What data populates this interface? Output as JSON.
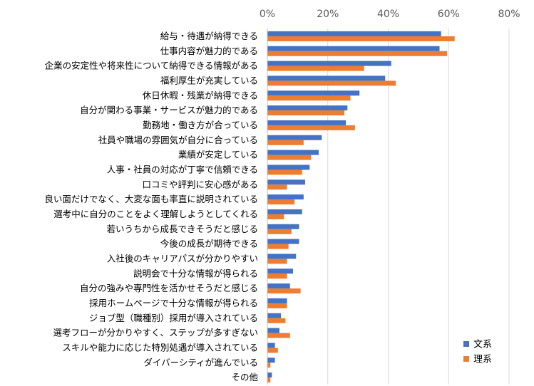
{
  "chart_data": {
    "type": "bar",
    "orientation": "horizontal",
    "title": "",
    "xlabel": "",
    "ylabel": "",
    "xlim": [
      0,
      80
    ],
    "x_ticks": [
      "0%",
      "20%",
      "40%",
      "60%",
      "80%"
    ],
    "x_tick_values": [
      0,
      20,
      40,
      60,
      80
    ],
    "grid": true,
    "legend_position": "bottom-right",
    "categories": [
      "給与・待遇が納得できる",
      "仕事内容が魅力的である",
      "企業の安定性や将来性について納得できる情報がある",
      "福利厚生が充実している",
      "休日休暇・残業が納得できる",
      "自分が関わる事業・サービスが魅力的である",
      "勤務地・働き方が合っている",
      "社員や職場の雰囲気が自分に合っている",
      "業績が安定している",
      "人事・社員の対応が丁寧で信頼できる",
      "口コミや評判に安心感がある",
      "良い面だけでなく、大変な面も率直に説明されている",
      "選考中に自分のことをよく理解しようとしてくれる",
      "若いうちから成長できそうだと感じる",
      "今後の成長が期待できる",
      "入社後のキャリアパスが分かりやすい",
      "説明会で十分な情報が得られる",
      "自分の強みや専門性を活かせそうだと感じる",
      "採用ホームページで十分な情報が得られる",
      "ジョブ型（職種別）採用が導入されている",
      "選考フローが分かりやすく、ステップが多すぎない",
      "スキルや能力に応じた特別処遇が導入されている",
      "ダイバーシティが進んでいる",
      "その他"
    ],
    "series": [
      {
        "name": "文系",
        "color": "#4472C4",
        "values": [
          57.5,
          57,
          41,
          39,
          30.5,
          26.5,
          26,
          18,
          17,
          14,
          12.5,
          12,
          11.5,
          10.5,
          10.5,
          9.5,
          8.5,
          7.5,
          6.5,
          4.5,
          4,
          2.5,
          2.5,
          1.5
        ]
      },
      {
        "name": "理系",
        "color": "#ED7D31",
        "values": [
          62,
          59.5,
          32,
          42.5,
          27.5,
          25.5,
          29,
          12,
          14.5,
          11.5,
          6.5,
          9,
          5.5,
          8,
          7,
          6.5,
          6.5,
          11,
          6.5,
          6,
          7.5,
          3.5,
          1,
          1
        ]
      }
    ]
  }
}
